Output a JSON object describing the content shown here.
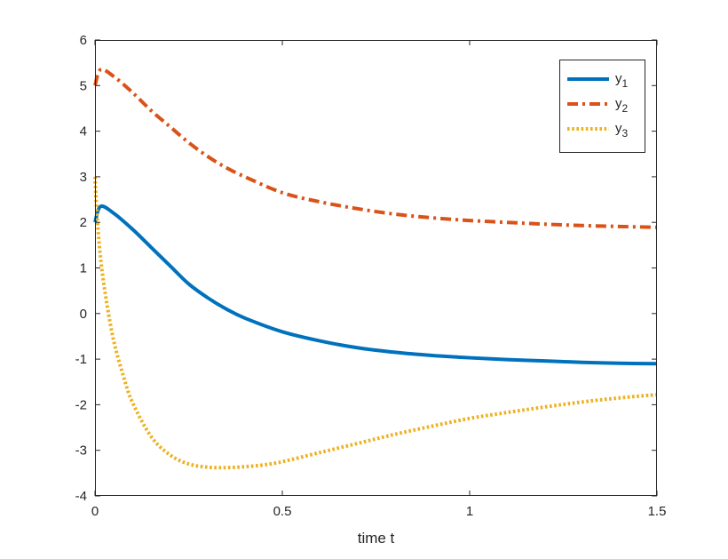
{
  "chart_data": {
    "type": "line",
    "title": "",
    "xlabel": "time t",
    "ylabel": "",
    "xlim": [
      0,
      1.5
    ],
    "ylim": [
      -4,
      6
    ],
    "xticks": [
      "0",
      "0.5",
      "1",
      "1.5"
    ],
    "yticks": [
      "-4",
      "-3",
      "-2",
      "-1",
      "0",
      "1",
      "2",
      "3",
      "4",
      "5",
      "6"
    ],
    "grid": false,
    "legend_position": "top-right",
    "series": [
      {
        "name": "y1",
        "legend_base": "y",
        "legend_sub": "1",
        "color": "#0072BD",
        "style": "solid",
        "x": [
          0,
          0.015,
          0.05,
          0.1,
          0.15,
          0.2,
          0.25,
          0.3,
          0.35,
          0.4,
          0.5,
          0.6,
          0.7,
          0.8,
          0.9,
          1.0,
          1.1,
          1.2,
          1.3,
          1.4,
          1.5
        ],
        "y": [
          2.0,
          2.35,
          2.2,
          1.85,
          1.45,
          1.05,
          0.65,
          0.35,
          0.1,
          -0.1,
          -0.4,
          -0.6,
          -0.75,
          -0.85,
          -0.92,
          -0.97,
          -1.01,
          -1.04,
          -1.07,
          -1.09,
          -1.1
        ]
      },
      {
        "name": "y2",
        "legend_base": "y",
        "legend_sub": "2",
        "color": "#D95319",
        "style": "dashdot",
        "x": [
          0,
          0.015,
          0.05,
          0.1,
          0.15,
          0.2,
          0.25,
          0.3,
          0.35,
          0.4,
          0.5,
          0.6,
          0.7,
          0.8,
          0.9,
          1.0,
          1.1,
          1.2,
          1.3,
          1.4,
          1.5
        ],
        "y": [
          5.0,
          5.35,
          5.2,
          4.85,
          4.45,
          4.1,
          3.75,
          3.45,
          3.2,
          3.0,
          2.65,
          2.45,
          2.3,
          2.18,
          2.1,
          2.04,
          2.0,
          1.96,
          1.93,
          1.91,
          1.89
        ]
      },
      {
        "name": "y3",
        "legend_base": "y",
        "legend_sub": "3",
        "color": "#EDB120",
        "style": "dotted",
        "x": [
          0,
          0.005,
          0.015,
          0.03,
          0.05,
          0.075,
          0.1,
          0.15,
          0.2,
          0.25,
          0.3,
          0.35,
          0.4,
          0.45,
          0.5,
          0.6,
          0.7,
          0.8,
          0.9,
          1.0,
          1.1,
          1.2,
          1.3,
          1.4,
          1.5
        ],
        "y": [
          3.0,
          2.2,
          1.2,
          0.3,
          -0.6,
          -1.35,
          -1.95,
          -2.7,
          -3.1,
          -3.3,
          -3.37,
          -3.38,
          -3.36,
          -3.32,
          -3.25,
          -3.05,
          -2.85,
          -2.65,
          -2.47,
          -2.3,
          -2.17,
          -2.05,
          -1.94,
          -1.85,
          -1.78
        ]
      }
    ]
  }
}
